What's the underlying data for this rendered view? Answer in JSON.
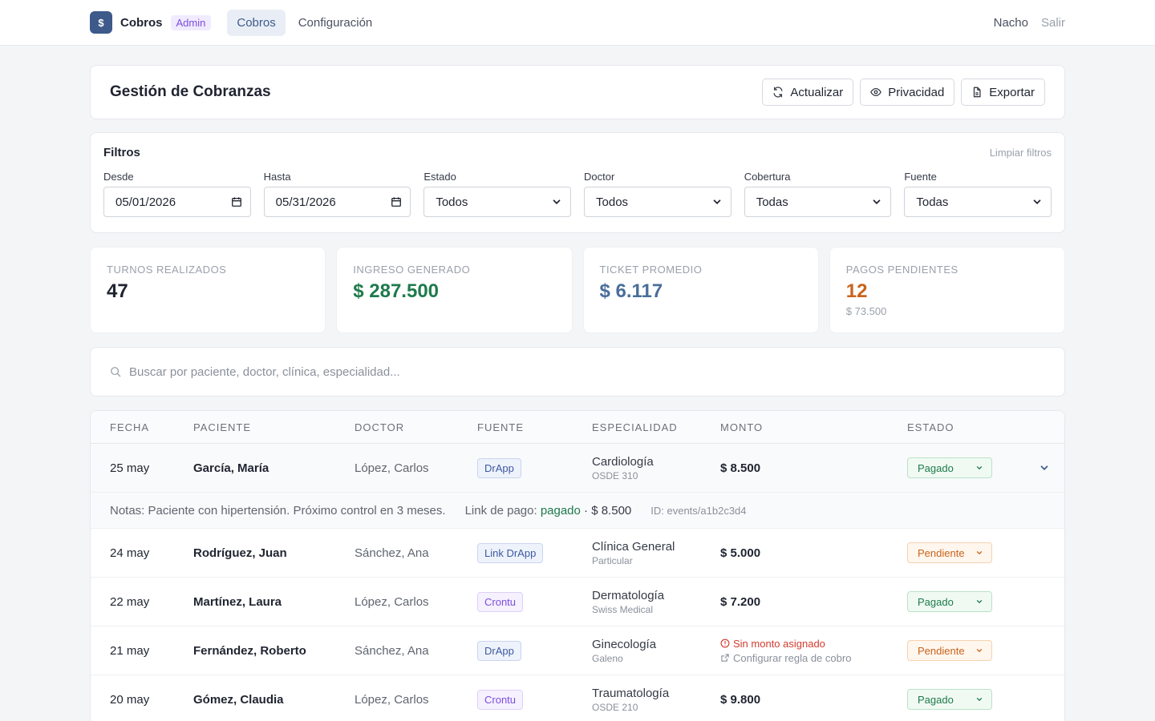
{
  "nav": {
    "logo_glyph": "$",
    "brand": "Cobros",
    "badge": "Admin",
    "links": [
      {
        "label": "Cobros",
        "active": true
      },
      {
        "label": "Configuración",
        "active": false
      }
    ],
    "user": "Nacho",
    "logout": "Salir"
  },
  "header": {
    "title": "Gestión de Cobranzas",
    "actions": {
      "refresh": "Actualizar",
      "privacy": "Privacidad",
      "export": "Exportar"
    }
  },
  "filters": {
    "title": "Filtros",
    "clear": "Limpiar filtros",
    "from": {
      "label": "Desde",
      "value": "05/01/2026"
    },
    "to": {
      "label": "Hasta",
      "value": "05/31/2026"
    },
    "status": {
      "label": "Estado",
      "value": "Todos"
    },
    "doctor": {
      "label": "Doctor",
      "value": "Todos"
    },
    "coverage": {
      "label": "Cobertura",
      "value": "Todas"
    },
    "source": {
      "label": "Fuente",
      "value": "Todas"
    }
  },
  "stats": [
    {
      "label": "TURNOS REALIZADOS",
      "value": "47",
      "sub": ""
    },
    {
      "label": "INGRESO GENERADO",
      "value": "$ 287.500",
      "sub": ""
    },
    {
      "label": "TICKET PROMEDIO",
      "value": "$ 6.117",
      "sub": ""
    },
    {
      "label": "PAGOS PENDIENTES",
      "value": "12",
      "sub": "$ 73.500"
    }
  ],
  "search": {
    "placeholder": "Buscar por paciente, doctor, clínica, especialidad..."
  },
  "table": {
    "headers": {
      "date": "FECHA",
      "patient": "PACIENTE",
      "doctor": "DOCTOR",
      "source": "FUENTE",
      "specialty": "ESPECIALIDAD",
      "amount": "MONTO",
      "status": "ESTADO"
    },
    "rows": [
      {
        "date": "25 may",
        "patient": "García, María",
        "doctor": "López, Carlos",
        "source": "DrApp",
        "specialty": "Cardiología",
        "coverage": "OSDE 310",
        "amount": "$ 8.500",
        "status": "Pagado"
      },
      {
        "date": "24 may",
        "patient": "Rodríguez, Juan",
        "doctor": "Sánchez, Ana",
        "source": "Link DrApp",
        "specialty": "Clínica General",
        "coverage": "Particular",
        "amount": "$ 5.000",
        "status": "Pendiente"
      },
      {
        "date": "22 may",
        "patient": "Martínez, Laura",
        "doctor": "López, Carlos",
        "source": "Crontu",
        "specialty": "Dermatología",
        "coverage": "Swiss Medical",
        "amount": "$ 7.200",
        "status": "Pagado"
      },
      {
        "date": "21 may",
        "patient": "Fernández, Roberto",
        "doctor": "Sánchez, Ana",
        "source": "DrApp",
        "specialty": "Ginecología",
        "coverage": "Galeno",
        "warning": "Sin monto asignado",
        "config": "Configurar regla de cobro",
        "status": "Pendiente"
      },
      {
        "date": "20 may",
        "patient": "Gómez, Claudia",
        "doctor": "López, Carlos",
        "source": "Crontu",
        "specialty": "Traumatología",
        "coverage": "OSDE 210",
        "amount": "$ 9.800",
        "status": "Pagado"
      }
    ],
    "expanded_notes": {
      "notes": "Notas: Paciente con hipertensión. Próximo control en 3 meses.",
      "link_label": "Link de pago:",
      "link_status": "pagado",
      "link_amount": "· $ 8.500",
      "id": "ID: events/a1b2c3d4"
    }
  },
  "colors": {
    "accent": "#3d5a8a",
    "paid": "#1e7a4c",
    "pending": "#c8641b",
    "warning": "#d13b2f"
  }
}
